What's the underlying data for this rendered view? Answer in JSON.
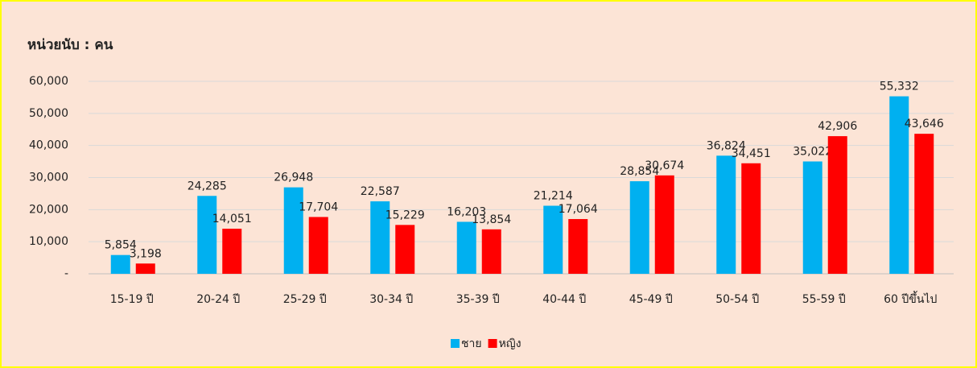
{
  "chart_data": {
    "type": "bar",
    "title": "หน่วยนับ : คน",
    "categories": [
      "15-19 ปี",
      "20-24 ปี",
      "25-29 ปี",
      "30-34 ปี",
      "35-39 ปี",
      "40-44 ปี",
      "45-49 ปี",
      "50-54 ปี",
      "55-59 ปี",
      "60 ปีขึ้นไป"
    ],
    "series": [
      {
        "name": "ชาย",
        "color": "#00b0f0",
        "values": [
          5854,
          24285,
          26948,
          22587,
          16203,
          21214,
          28854,
          36824,
          35022,
          55332
        ],
        "value_labels": [
          "5,854",
          "24,285",
          "26,948",
          "22,587",
          "16,203",
          "21,214",
          "28,854",
          "36,824",
          "35,022",
          "55,332"
        ]
      },
      {
        "name": "หญิง",
        "color": "#ff0000",
        "values": [
          3198,
          14051,
          17704,
          15229,
          13854,
          17064,
          30674,
          34451,
          42906,
          43646
        ],
        "value_labels": [
          "3,198",
          "14,051",
          "17,704",
          "15,229",
          "13,854",
          "17,064",
          "30,674",
          "34,451",
          "42,906",
          "43,646"
        ]
      }
    ],
    "ylim": [
      0,
      60000
    ],
    "yticks": [
      {
        "value": 0,
        "label": "-"
      },
      {
        "value": 10000,
        "label": "10,000"
      },
      {
        "value": 20000,
        "label": "20,000"
      },
      {
        "value": 30000,
        "label": "30,000"
      },
      {
        "value": 40000,
        "label": "40,000"
      },
      {
        "value": 50000,
        "label": "50,000"
      },
      {
        "value": 60000,
        "label": "60,000"
      }
    ],
    "grid": true,
    "legend": "bottom"
  }
}
